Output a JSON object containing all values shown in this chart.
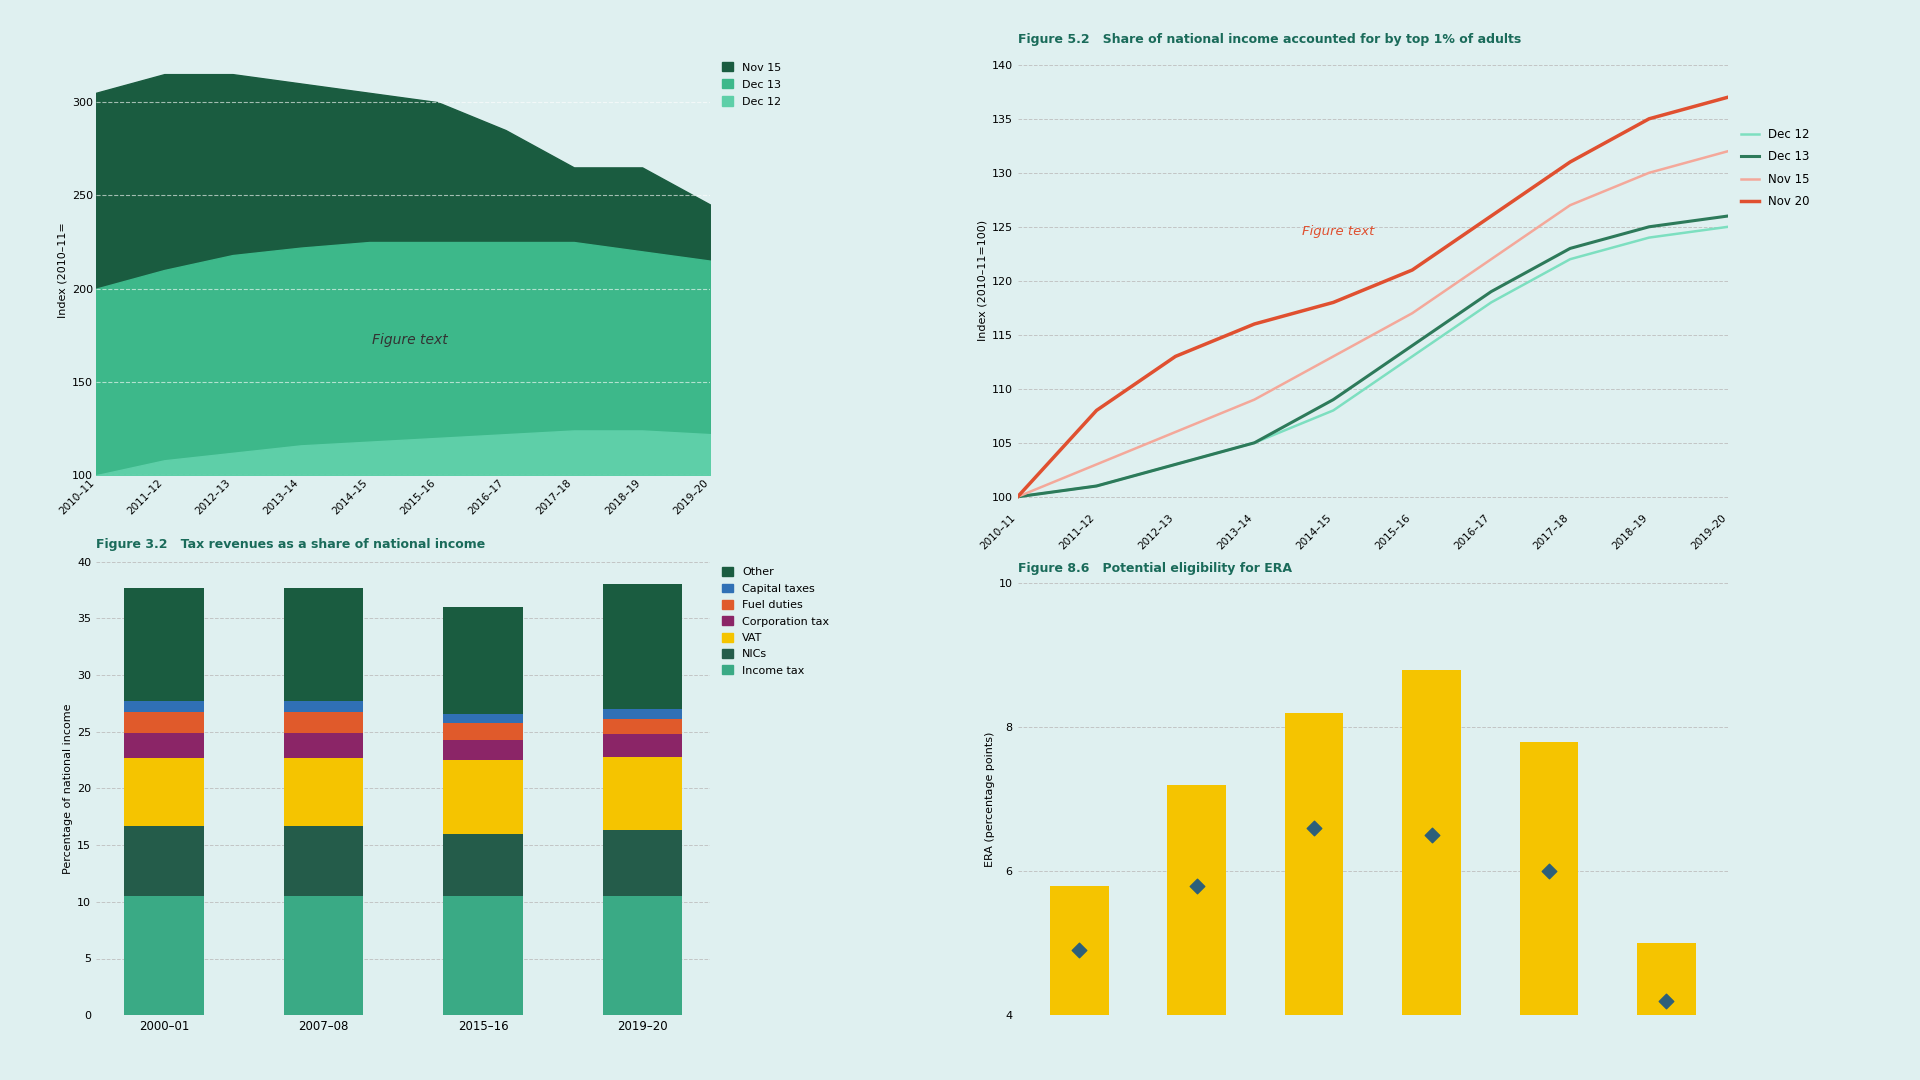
{
  "bg_color": "#dff0f0",
  "title_color": "#1a6b5a",
  "chart1": {
    "ylabel": "Index (2010–11=",
    "yticks": [
      100,
      150,
      200,
      250,
      300
    ],
    "ylim": [
      100,
      320
    ],
    "xticks": [
      "2010–11",
      "2011–12",
      "2012–13",
      "2013–14",
      "2014–15",
      "2015–16",
      "2016–17",
      "2017–18",
      "2018–19",
      "2019–20"
    ],
    "series": {
      "Nov 15": {
        "color": "#1a5c40",
        "values": [
          305,
          315,
          315,
          310,
          305,
          300,
          285,
          265,
          265,
          245
        ]
      },
      "Dec 13": {
        "color": "#3db88a",
        "values": [
          200,
          210,
          218,
          222,
          225,
          225,
          225,
          225,
          220,
          215
        ]
      },
      "Dec 12": {
        "color": "#5ecfa8",
        "values": [
          100,
          108,
          112,
          116,
          118,
          120,
          122,
          124,
          124,
          122
        ]
      }
    },
    "figure_text": "Figure text",
    "legend_order": [
      "Nov 15",
      "Dec 13",
      "Dec 12"
    ]
  },
  "chart2": {
    "title": "Figure 3.2   Tax revenues as a share of national income",
    "ylabel": "Percentage of national income",
    "yticks": [
      0,
      5,
      10,
      15,
      20,
      25,
      30,
      35,
      40
    ],
    "ylim": [
      0,
      40
    ],
    "categories": [
      "2000–01",
      "2007–08",
      "2015–16",
      "2019–20"
    ],
    "stacks": {
      "Income tax": {
        "color": "#3aaa85",
        "values": [
          10.5,
          10.5,
          10.5,
          10.5
        ]
      },
      "NICs": {
        "color": "#245c4a",
        "values": [
          6.2,
          6.2,
          5.5,
          5.8
        ]
      },
      "VAT": {
        "color": "#f5c400",
        "values": [
          6.0,
          6.0,
          6.5,
          6.5
        ]
      },
      "Corporation tax": {
        "color": "#8b2567",
        "values": [
          2.2,
          2.2,
          1.8,
          2.0
        ]
      },
      "Fuel duties": {
        "color": "#e05a2b",
        "values": [
          1.8,
          1.8,
          1.5,
          1.3
        ]
      },
      "Capital taxes": {
        "color": "#3070b5",
        "values": [
          1.0,
          1.0,
          0.8,
          0.9
        ]
      },
      "Other": {
        "color": "#1a5c40",
        "values": [
          10.0,
          10.0,
          9.4,
          11.0
        ]
      }
    },
    "legend_order": [
      "Other",
      "Capital taxes",
      "Fuel duties",
      "Corporation tax",
      "VAT",
      "NICs",
      "Income tax"
    ]
  },
  "chart3": {
    "title": "Figure 5.2   Share of national income accounted for by top 1% of adults",
    "ylabel": "Index (2010–11=100)",
    "yticks": [
      100,
      105,
      110,
      115,
      120,
      125,
      130,
      135,
      140
    ],
    "ylim": [
      99,
      141
    ],
    "xticks": [
      "2010–11",
      "2011–12",
      "2012–13",
      "2013–14",
      "2014–15",
      "2015–16",
      "2016–17",
      "2017–18",
      "2018–19",
      "2019–20"
    ],
    "series": {
      "Dec 12": {
        "color": "#7ddfc0",
        "lw": 1.8,
        "values": [
          100,
          101,
          103,
          105,
          108,
          113,
          118,
          122,
          124,
          125
        ]
      },
      "Dec 13": {
        "color": "#2d7a5a",
        "lw": 2.2,
        "values": [
          100,
          101,
          103,
          105,
          109,
          114,
          119,
          123,
          125,
          126
        ]
      },
      "Nov 15": {
        "color": "#f4a89a",
        "lw": 1.8,
        "values": [
          100,
          103,
          106,
          109,
          113,
          117,
          122,
          127,
          130,
          132
        ]
      },
      "Nov 20": {
        "color": "#e05030",
        "lw": 2.5,
        "values": [
          100,
          108,
          113,
          116,
          118,
          121,
          126,
          131,
          135,
          137
        ]
      }
    },
    "figure_text": "Figure text",
    "figure_text_color": "#e05030",
    "legend_order": [
      "Dec 12",
      "Dec 13",
      "Nov 15",
      "Nov 20"
    ]
  },
  "chart4": {
    "title": "Figure 8.6   Potential eligibility for ERA",
    "ylabel": "ERA (percentage points)",
    "ylim": [
      4,
      10
    ],
    "yticks": [
      4,
      6,
      8,
      10
    ],
    "categories": [
      "",
      "",
      "",
      "",
      "",
      ""
    ],
    "bar_values": [
      5.8,
      7.2,
      8.2,
      8.8,
      7.8,
      5.0
    ],
    "diamond_values": [
      4.9,
      5.8,
      6.6,
      6.5,
      6.0,
      4.2
    ],
    "bar_color": "#f5c400",
    "diamond_color": "#2d5f7a"
  }
}
